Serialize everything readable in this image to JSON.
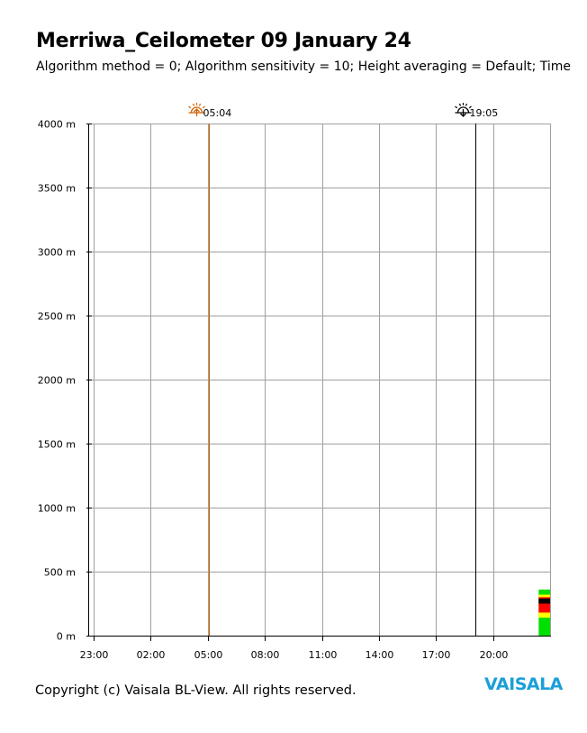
{
  "header": {
    "title": "Merriwa_Ceilometer 09 January 24",
    "subtitle": "Algorithm method = 0; Algorithm sensitivity = 10; Height averaging = Default; Time"
  },
  "footer": {
    "copyright": "Copyright (c) Vaisala BL-View. All rights reserved.",
    "logo_text": "VAISALA"
  },
  "colors": {
    "grid": "#a0a0a0",
    "axis": "#000000",
    "sunrise": "#d06000",
    "sunset": "#000000",
    "logo": "#1a9fd9",
    "backscatter": [
      "#00e000",
      "#ffff00",
      "#ff0000",
      "#000000"
    ]
  },
  "chart_data": {
    "type": "heatmap",
    "title": "Merriwa_Ceilometer 09 January 24",
    "y_unit": "m",
    "ylim": [
      0,
      4000
    ],
    "y_ticks": [
      {
        "value": 0,
        "label": "0 m"
      },
      {
        "value": 500,
        "label": "500 m"
      },
      {
        "value": 1000,
        "label": "1000 m"
      },
      {
        "value": 1500,
        "label": "1500 m"
      },
      {
        "value": 2000,
        "label": "2000 m"
      },
      {
        "value": 2500,
        "label": "2500 m"
      },
      {
        "value": 3000,
        "label": "3000 m"
      },
      {
        "value": 3500,
        "label": "3500 m"
      },
      {
        "value": 4000,
        "label": "4000 m"
      }
    ],
    "x_ticks": [
      {
        "value": 0,
        "label": "23:00"
      },
      {
        "value": 3,
        "label": "02:00"
      },
      {
        "value": 6,
        "label": "05:00"
      },
      {
        "value": 9,
        "label": "08:00"
      },
      {
        "value": 12,
        "label": "11:00"
      },
      {
        "value": 15,
        "label": "14:00"
      },
      {
        "value": 18,
        "label": "17:00"
      },
      {
        "value": 21,
        "label": "20:00"
      }
    ],
    "xlim_hours_from_2300": [
      -0.1,
      24
    ],
    "grid": true,
    "sun_events": [
      {
        "name": "sunrise",
        "label": "05:04",
        "hours_from_2300": 6.07,
        "icon": "sunrise-icon"
      },
      {
        "name": "sunset",
        "label": "19:05",
        "hours_from_2300": 20.08,
        "icon": "sunset-icon"
      }
    ],
    "data_blocks": [
      {
        "start_hours_from_2300": 23.4,
        "end_hours_from_2300": 24.0,
        "layers": [
          {
            "color": "green",
            "from_m": 0,
            "to_m": 360
          },
          {
            "color": "yellow",
            "from_m": 140,
            "to_m": 320
          },
          {
            "color": "red",
            "from_m": 180,
            "to_m": 300
          },
          {
            "color": "black",
            "from_m": 250,
            "to_m": 290
          }
        ]
      }
    ]
  }
}
